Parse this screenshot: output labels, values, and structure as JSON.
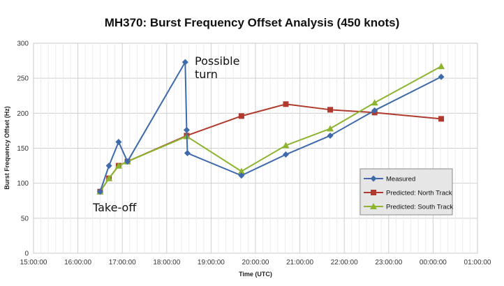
{
  "chart_data": {
    "type": "line",
    "title": "MH370: Burst Frequency Offset Analysis (450 knots)",
    "xlabel": "Time (UTC)",
    "ylabel": "Burst Frequency Offset (Hz)",
    "x_ticks": [
      "15:00:00",
      "16:00:00",
      "17:00:00",
      "18:00:00",
      "19:00:00",
      "20:00:00",
      "21:00:00",
      "22:00:00",
      "23:00:00",
      "00:00:00",
      "01:00:00"
    ],
    "xlim": [
      "15:00",
      "01:00 (+1 day)"
    ],
    "ylim": [
      0,
      300
    ],
    "y_ticks": [
      0,
      50,
      100,
      150,
      200,
      250,
      300
    ],
    "grid": true,
    "legend_position": "bottom-right",
    "series": [
      {
        "name": "Measured",
        "color": "#3e6aac",
        "marker": "diamond",
        "x": [
          "16:30",
          "16:42",
          "16:55",
          "17:07",
          "18:25",
          "18:27",
          "18:28",
          "19:41",
          "20:41",
          "21:41",
          "22:41",
          "00:11"
        ],
        "y": [
          88,
          125,
          159,
          131,
          273,
          176,
          143,
          111,
          141,
          168,
          204,
          252
        ]
      },
      {
        "name": "Predicted: North Track",
        "color": "#b03a2e",
        "marker": "square",
        "x": [
          "16:30",
          "16:42",
          "16:55",
          "17:07",
          "18:27",
          "19:41",
          "20:41",
          "21:41",
          "22:41",
          "00:11"
        ],
        "y": [
          88,
          107,
          125,
          131,
          168,
          196,
          213,
          205,
          201,
          192
        ]
      },
      {
        "name": "Predicted: South Track",
        "color": "#8db42f",
        "marker": "triangle",
        "x": [
          "16:30",
          "16:42",
          "16:55",
          "17:07",
          "18:27",
          "19:41",
          "20:41",
          "21:41",
          "22:41",
          "00:11"
        ],
        "y": [
          88,
          107,
          125,
          131,
          167,
          117,
          154,
          178,
          215,
          267
        ]
      }
    ],
    "annotations": [
      {
        "text_lines": [
          "Possible",
          "turn"
        ],
        "near": "peak of Measured at 18:25"
      },
      {
        "text_lines": [
          "Take-off"
        ],
        "near": "first points at 16:30"
      }
    ]
  }
}
